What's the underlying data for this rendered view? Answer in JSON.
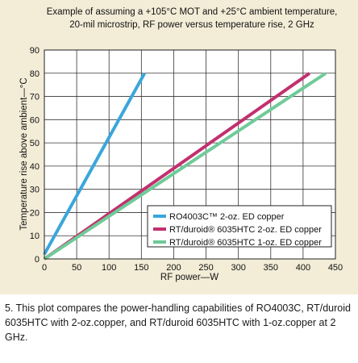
{
  "chart_data": {
    "type": "line",
    "title_lines": [
      "Example of assuming a +105°C MOT and +25°C ambient temperature,",
      "20-mil microstrip, RF power versus temperature rise, 2 GHz"
    ],
    "xlabel": "RF power—W",
    "ylabel": "Temperature rise above ambient—°C",
    "xlim": [
      0,
      450
    ],
    "ylim": [
      0,
      90
    ],
    "x_ticks": [
      "0",
      "50",
      "100",
      "150",
      "200",
      "250",
      "300",
      "350",
      "400",
      "450"
    ],
    "y_ticks": [
      "0",
      "10",
      "20",
      "30",
      "40",
      "50",
      "60",
      "70",
      "80",
      "90"
    ],
    "grid": true,
    "legend_position": "bottom-right",
    "series": [
      {
        "name": "RO4003C™ 2-oz. ED copper",
        "color": "#3aa6db",
        "x": [
          0,
          155
        ],
        "y": [
          2,
          80
        ]
      },
      {
        "name": "RT/duroid® 6035HTC 2-oz. ED copper",
        "color": "#c2306e",
        "x": [
          0,
          410
        ],
        "y": [
          0,
          80
        ]
      },
      {
        "name": "RT/duroid® 6035HTC 1-oz. ED copper",
        "color": "#6fcb98",
        "x": [
          0,
          435
        ],
        "y": [
          0,
          80
        ]
      }
    ]
  },
  "caption": "5. This plot compares the power-handling capabilities of RO4003C, RT/duroid 6035HTC with 2-oz.copper, and RT/duroid 6035HTC with 1-oz.copper at 2 GHz."
}
